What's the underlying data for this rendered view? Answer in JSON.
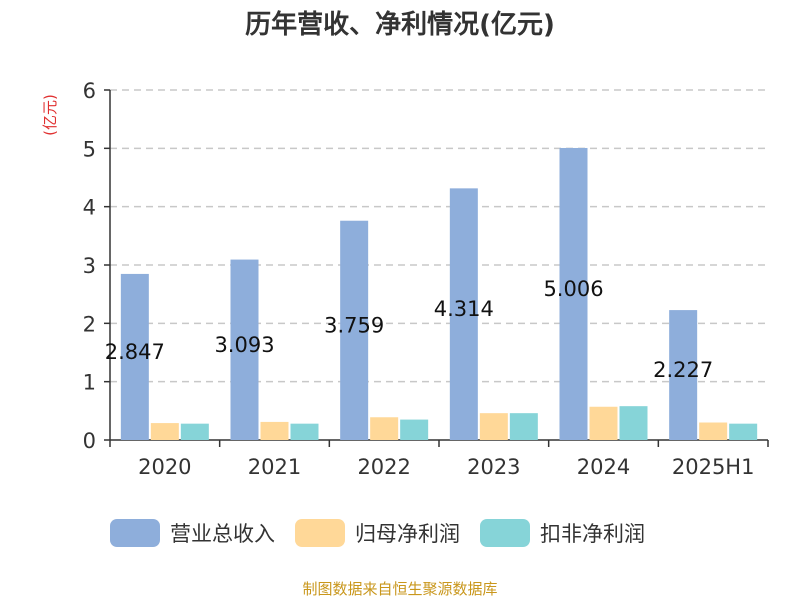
{
  "chart_data": {
    "type": "bar",
    "title": "历年营收、净利情况(亿元)",
    "ylabel": "(亿元)",
    "xlabel": "",
    "categories": [
      "2020",
      "2021",
      "2022",
      "2023",
      "2024",
      "2025H1"
    ],
    "ylim": [
      0,
      6
    ],
    "yticks": [
      0,
      1,
      2,
      3,
      4,
      5,
      6
    ],
    "grid": true,
    "legend_position": "bottom",
    "series": [
      {
        "name": "营业总收入",
        "color": "#8eaedb",
        "values": [
          2.847,
          3.093,
          3.759,
          4.314,
          5.006,
          2.227
        ]
      },
      {
        "name": "归母净利润",
        "color": "#ffd898",
        "values": [
          0.29,
          0.31,
          0.39,
          0.46,
          0.57,
          0.3
        ]
      },
      {
        "name": "扣非净利润",
        "color": "#86d4d8",
        "values": [
          0.28,
          0.28,
          0.35,
          0.46,
          0.58,
          0.28
        ]
      }
    ],
    "data_labels": [
      "2.847",
      "3.093",
      "3.759",
      "4.314",
      "5.006",
      "2.227"
    ]
  },
  "footer": {
    "source": "制图数据来自恒生聚源数据库"
  }
}
